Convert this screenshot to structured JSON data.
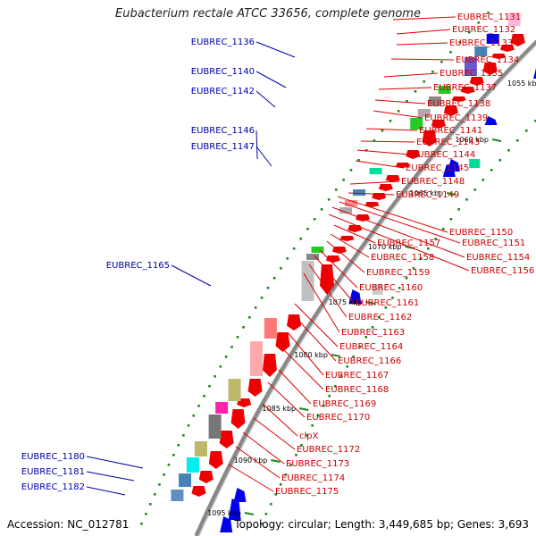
{
  "title": "Eubacterium rectale ATCC 33656, complete genome",
  "footer": {
    "accession": "Accession: NC_012781",
    "topology": "Topology: circular; Length: 3,449,685 bp; Genes: 3,693"
  },
  "kbp_labels": [
    "1050 kbp",
    "1055 kbp",
    "1060 kbp",
    "1065 kbp",
    "1070 kbp",
    "1075 kbp",
    "1080 kbp",
    "1085 kbp",
    "1090 kbp",
    "1095 kbp"
  ],
  "left_labels": [
    "EUBREC_1136",
    "EUBREC_1140",
    "EUBREC_1142",
    "EUBREC_1146",
    "EUBREC_1147",
    "EUBREC_1165",
    "EUBREC_1180",
    "EUBREC_1181",
    "EUBREC_1182"
  ],
  "right_labels": [
    "EUBREC_1131",
    "EUBREC_1132",
    "EUBREC_1133",
    "EUBREC_1134",
    "EUBREC_1135",
    "EUBREC_1137",
    "EUBREC_1138",
    "EUBREC_1139",
    "EUBREC_1141",
    "EUBREC_1143",
    "EUBREC_1144",
    "EUBREC_1145",
    "EUBREC_1148",
    "EUBREC_1149",
    "EUBREC_1150",
    "EUBREC_1151",
    "EUBREC_1154",
    "EUBREC_1156",
    "EUBREC_1157",
    "EUBREC_1158",
    "EUBREC_1159",
    "EUBREC_1160",
    "EUBREC_1161",
    "EUBREC_1162",
    "EUBREC_1163",
    "EUBREC_1164",
    "EUBREC_1166",
    "EUBREC_1167",
    "EUBREC_1168",
    "EUBREC_1169",
    "EUBREC_1170",
    "clpX",
    "EUBREC_1172",
    "EUBREC_1173",
    "EUBREC_1174",
    "EUBREC_1175"
  ],
  "colors": {
    "left_label": "#0000aa",
    "right_label": "#cc0000",
    "backbone": "#888888",
    "tick_dots": "#1a8a1a",
    "gene_red": "#ee0000",
    "gene_blue": "#0000ee"
  }
}
